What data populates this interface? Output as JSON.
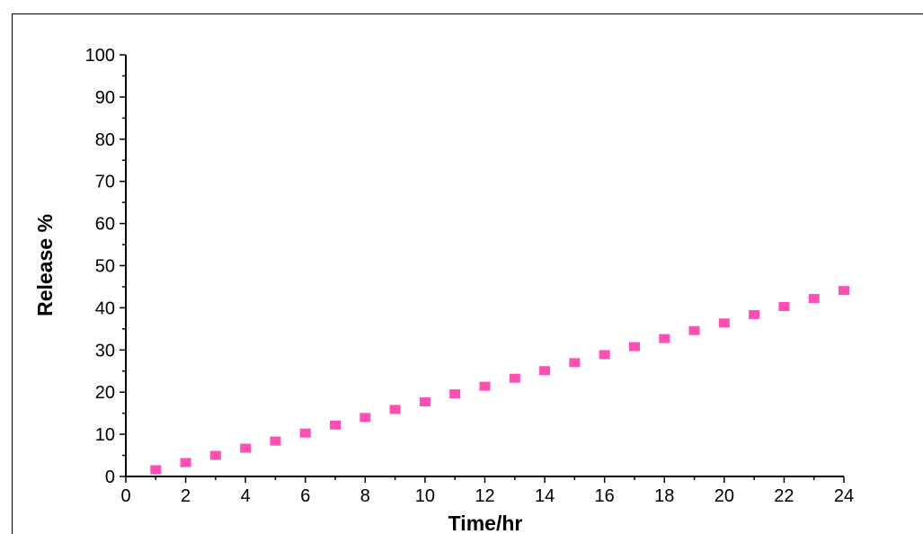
{
  "chart_data": {
    "type": "scatter",
    "xlabel": "Time/hr",
    "ylabel": "Release %",
    "xlim": [
      0,
      24
    ],
    "ylim": [
      0,
      100
    ],
    "x_ticks": [
      "0",
      "2",
      "4",
      "6",
      "8",
      "10",
      "12",
      "14",
      "16",
      "18",
      "20",
      "22",
      "24"
    ],
    "y_ticks": [
      "0",
      "10",
      "20",
      "30",
      "40",
      "50",
      "60",
      "70",
      "80",
      "90",
      "100"
    ],
    "grid": false,
    "marker": "square",
    "marker_color": "#ff4fb4",
    "series": [
      {
        "x": [
          1,
          2,
          3,
          4,
          5,
          6,
          7,
          8,
          9,
          10,
          11,
          12,
          13,
          14,
          15,
          16,
          17,
          18,
          19,
          20,
          21,
          22,
          23,
          24
        ],
        "y": [
          1.6,
          3.3,
          5.0,
          6.7,
          8.4,
          10.3,
          12.2,
          14.0,
          15.9,
          17.7,
          19.6,
          21.4,
          23.3,
          25.1,
          27.0,
          28.9,
          30.8,
          32.7,
          34.6,
          36.4,
          38.4,
          40.3,
          42.2,
          44.1
        ]
      }
    ]
  }
}
